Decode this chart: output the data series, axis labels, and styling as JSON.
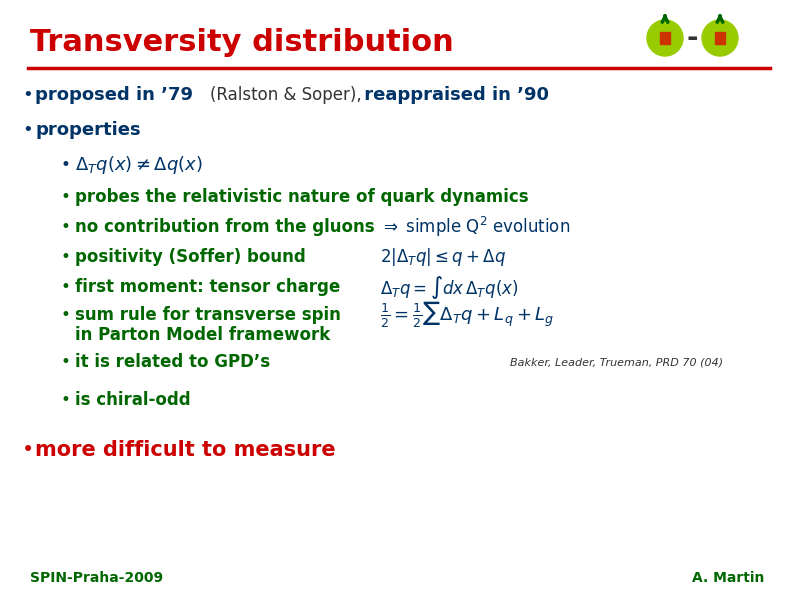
{
  "title": "Transversity distribution",
  "title_color": "#cc0000",
  "title_fontsize": 22,
  "background_color": "#ffffff",
  "red_line_color": "#cc0000",
  "bullet_color": "#003366",
  "green_color": "#006600",
  "dark_red": "#cc0000",
  "footer_left": "SPIN-Praha-2009",
  "footer_right": "A. Martin",
  "footer_color": "#006600",
  "footer_fontsize": 10,
  "line1": "proposed in ’79 (Ralston & Soper), reappraised in ’90",
  "line2": "properties",
  "sub1": "Δ₄q(x) ≠ Δq(x)",
  "sub2": "probes the relativistic nature of quark dynamics",
  "sub3": "no contribution from the gluons",
  "sub3b": "⇒ simple Q² evolution",
  "sub4": "positivity (Soffer) bound",
  "sub5": "first moment: tensor charge",
  "sub6": "sum rule for transverse spin",
  "sub6b": "in Parton Model framework",
  "sub7": "it is related to GPD’s",
  "sub8": "is chiral-odd",
  "line3": "more difficult to measure",
  "citation": "Bakker, Leader, Trueman, PRD 70 (04)"
}
